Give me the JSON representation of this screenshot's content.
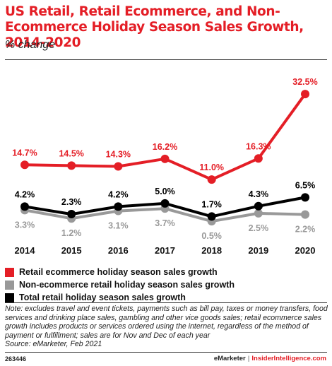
{
  "header": {
    "title": "US Retail, Retail Ecommerce, and Non-Ecommerce Holiday Season Sales Growth, 2014-2020",
    "subtitle": "% change"
  },
  "chart_data": {
    "type": "line",
    "title": "US Retail, Retail Ecommerce, and Non-Ecommerce Holiday Season Sales Growth, 2014-2020",
    "subtitle": "% change",
    "x": [
      "2014",
      "2015",
      "2016",
      "2017",
      "2018",
      "2019",
      "2020"
    ],
    "series": [
      {
        "name": "Retail ecommerce holiday season sales growth",
        "color": "#e41e26",
        "values": [
          14.7,
          14.5,
          14.3,
          16.2,
          11.0,
          16.3,
          32.5
        ],
        "labels": [
          "14.7%",
          "14.5%",
          "14.3%",
          "16.2%",
          "11.0%",
          "16.3%",
          "32.5%"
        ]
      },
      {
        "name": "Non-ecommerce retail holiday season sales growth",
        "color": "#999999",
        "values": [
          3.3,
          1.2,
          3.1,
          3.7,
          0.5,
          2.5,
          2.2
        ],
        "labels": [
          "3.3%",
          "1.2%",
          "3.1%",
          "3.7%",
          "0.5%",
          "2.5%",
          "2.2%"
        ]
      },
      {
        "name": "Total retail holiday season sales growth",
        "color": "#000000",
        "values": [
          4.2,
          2.3,
          4.2,
          5.0,
          1.7,
          4.3,
          6.5
        ],
        "labels": [
          "4.2%",
          "2.3%",
          "4.2%",
          "5.0%",
          "1.7%",
          "4.3%",
          "6.5%"
        ]
      }
    ],
    "ylim": [
      0,
      35
    ],
    "grid": false,
    "legend_position": "bottom"
  },
  "legend": {
    "items": [
      {
        "label": "Retail ecommerce holiday season sales growth",
        "color": "#e41e26"
      },
      {
        "label": "Non-ecommerce retail holiday season sales growth",
        "color": "#999999"
      },
      {
        "label": "Total retail holiday season sales growth",
        "color": "#000000"
      }
    ]
  },
  "footnote": {
    "note": "Note: excludes travel and event tickets, payments such as bill pay, taxes or money transfers, food services and drinking place sales, gambling and other vice goods sales; retail ecommerce sales growth includes products or services ordered using the internet, regardless of the method of payment or fulfillment; sales are for Nov and Dec of each year",
    "source": "Source: eMarketer, Feb 2021"
  },
  "footer": {
    "chart_id": "263446",
    "brand": "eMarketer",
    "separator": "|",
    "site": "InsiderIntelligence.com"
  }
}
